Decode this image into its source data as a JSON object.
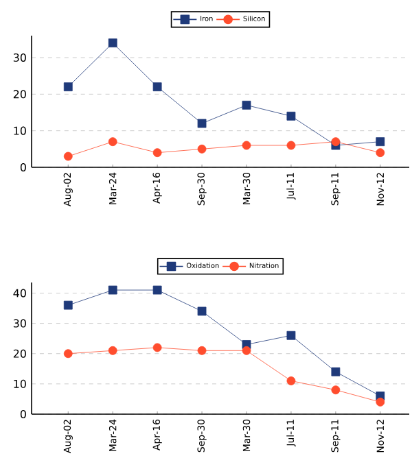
{
  "chart_data": [
    {
      "type": "line",
      "categories": [
        "Aug-02",
        "Mar-24",
        "Apr-16",
        "Sep-30",
        "Mar-30",
        "Jul-11",
        "Sep-11",
        "Nov-12"
      ],
      "ylim": [
        0,
        36
      ],
      "yticks": [
        0,
        10,
        20,
        30
      ],
      "grid": "y",
      "legend": "top",
      "line_style": "solid",
      "series": [
        {
          "name": "Iron",
          "color": "#1f3a7a",
          "marker": "square",
          "values": [
            22,
            34,
            22,
            12,
            17,
            14,
            6,
            7
          ]
        },
        {
          "name": "Silicon",
          "color": "#ff4d2e",
          "marker": "circle",
          "values": [
            3,
            7,
            4,
            5,
            6,
            6,
            7,
            4
          ]
        }
      ]
    },
    {
      "type": "line",
      "categories": [
        "Aug-02",
        "Mar-24",
        "Apr-16",
        "Sep-30",
        "Mar-30",
        "Jul-11",
        "Sep-11",
        "Nov-12"
      ],
      "ylim": [
        0,
        43.5
      ],
      "yticks": [
        0,
        10,
        20,
        30,
        40
      ],
      "grid": "y",
      "legend": "top",
      "line_style": "solid",
      "series": [
        {
          "name": "Oxidation",
          "color": "#1f3a7a",
          "marker": "square",
          "values": [
            36,
            41,
            41,
            34,
            23,
            26,
            14,
            6
          ]
        },
        {
          "name": "Nitration",
          "color": "#ff4d2e",
          "marker": "circle",
          "values": [
            20,
            21,
            22,
            21,
            21,
            11,
            8,
            4
          ]
        }
      ]
    }
  ]
}
